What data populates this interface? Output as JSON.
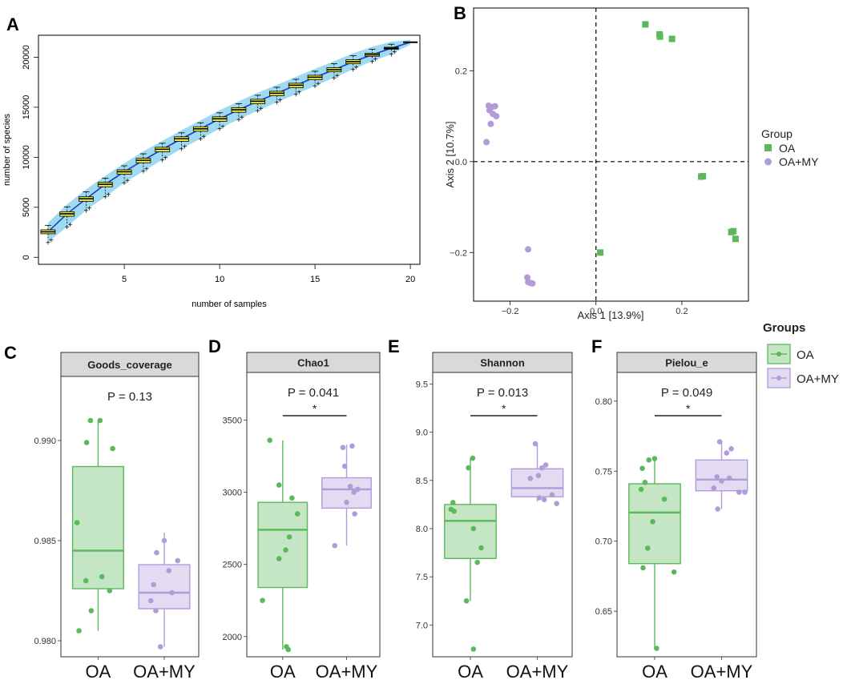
{
  "colors": {
    "oa": "#5cb85c",
    "oa_fill": "#c5e6c5",
    "oamy": "#b19cd9",
    "oamy_fill": "#e3dbf2",
    "band": "#8fd3f0",
    "box_yellow": "#f2ef3a",
    "curve": "#1a3fbf",
    "strip": "#d9d9d9"
  },
  "chart_data": [
    {
      "panel": "A",
      "type": "box",
      "title": "",
      "xlabel": "number of samples",
      "ylabel": "number of species",
      "xlim": [
        0.5,
        20.5
      ],
      "ylim": [
        -700,
        22200
      ],
      "xticks": [
        5,
        10,
        15,
        20
      ],
      "yticks": [
        0,
        5000,
        10000,
        15000,
        20000
      ],
      "x": [
        1,
        2,
        3,
        4,
        5,
        6,
        7,
        8,
        9,
        10,
        11,
        12,
        13,
        14,
        15,
        16,
        17,
        18,
        19,
        20
      ],
      "median": [
        2550,
        4350,
        5850,
        7300,
        8550,
        9700,
        10800,
        11850,
        12850,
        13850,
        14750,
        15600,
        16400,
        17200,
        18000,
        18750,
        19550,
        20250,
        20900,
        21500
      ],
      "q1": [
        2350,
        4100,
        5600,
        7050,
        8300,
        9450,
        10550,
        11600,
        12600,
        13600,
        14500,
        15350,
        16150,
        16950,
        17750,
        18550,
        19350,
        20100,
        20800,
        21500
      ],
      "q3": [
        2750,
        4550,
        6050,
        7500,
        8750,
        9900,
        11000,
        12050,
        13050,
        14050,
        14950,
        15800,
        16600,
        17400,
        18200,
        18950,
        19750,
        20400,
        21000,
        21500
      ],
      "low": [
        1750,
        3300,
        4950,
        6300,
        7700,
        8850,
        10000,
        11100,
        12100,
        13100,
        14050,
        14900,
        15750,
        16550,
        17400,
        18200,
        19050,
        19850,
        20550,
        21500
      ],
      "high": [
        3200,
        5050,
        6550,
        7900,
        9150,
        10350,
        11400,
        12450,
        13450,
        14450,
        15350,
        16200,
        17000,
        17800,
        18600,
        19350,
        20150,
        20800,
        21300,
        21500
      ]
    },
    {
      "panel": "B",
      "type": "scatter",
      "xlabel": "Axis 1 [13.9%]",
      "ylabel": "Axis 2 [10.7%]",
      "xlim": [
        -0.285,
        0.355
      ],
      "ylim": [
        -0.307,
        0.338
      ],
      "xticks": [
        -0.2,
        0.0,
        0.2
      ],
      "xtick_labels": [
        "−0.2",
        "0.0",
        "0.2"
      ],
      "yticks": [
        -0.2,
        0.0,
        0.2
      ],
      "ytick_labels": [
        "−0.2",
        "0.0",
        "0.2"
      ],
      "legend_title": "Group",
      "series": [
        {
          "name": "OA",
          "marker": "square",
          "points": [
            [
              0.115,
              0.302
            ],
            [
              0.148,
              0.28
            ],
            [
              0.149,
              0.275
            ],
            [
              0.177,
              0.27
            ],
            [
              0.245,
              -0.033
            ],
            [
              0.249,
              -0.032
            ],
            [
              0.315,
              -0.155
            ],
            [
              0.32,
              -0.153
            ],
            [
              0.325,
              -0.17
            ],
            [
              0.01,
              -0.2
            ]
          ]
        },
        {
          "name": "OA+MY",
          "marker": "circle",
          "points": [
            [
              -0.25,
              0.123
            ],
            [
              -0.243,
              0.12
            ],
            [
              -0.235,
              0.122
            ],
            [
              -0.248,
              0.113
            ],
            [
              -0.24,
              0.105
            ],
            [
              -0.232,
              0.1
            ],
            [
              -0.245,
              0.083
            ],
            [
              -0.255,
              0.043
            ],
            [
              -0.158,
              -0.193
            ],
            [
              -0.16,
              -0.255
            ],
            [
              -0.158,
              -0.265
            ],
            [
              -0.153,
              -0.267
            ],
            [
              -0.148,
              -0.268
            ]
          ]
        }
      ]
    },
    {
      "panel": "C",
      "type": "box",
      "strip_title": "Goods_coverage",
      "p_label": "P = 0.13",
      "significance": "",
      "categories": [
        "OA",
        "OA+MY"
      ],
      "ylim": [
        0.9792,
        0.9932
      ],
      "yticks": [
        0.98,
        0.985,
        0.99
      ],
      "ytick_labels": [
        "0.980",
        "0.985",
        "0.990"
      ],
      "boxes": [
        {
          "low": 0.9805,
          "q1": 0.9826,
          "median": 0.9845,
          "q3": 0.9887,
          "high": 0.991
        },
        {
          "low": 0.9797,
          "q1": 0.9816,
          "median": 0.9824,
          "q3": 0.9838,
          "high": 0.9854
        }
      ],
      "points": [
        [
          [
            -0.2,
            0.991
          ],
          [
            0.05,
            0.991
          ],
          [
            -0.3,
            0.9899
          ],
          [
            0.38,
            0.9896
          ],
          [
            -0.55,
            0.9859
          ],
          [
            -0.32,
            0.983
          ],
          [
            0.1,
            0.9832
          ],
          [
            0.3,
            0.9825
          ],
          [
            -0.18,
            0.9815
          ],
          [
            -0.5,
            0.9805
          ]
        ],
        [
          [
            0.0,
            0.985
          ],
          [
            -0.2,
            0.9844
          ],
          [
            0.35,
            0.984
          ],
          [
            0.12,
            0.9835
          ],
          [
            -0.28,
            0.9828
          ],
          [
            0.2,
            0.9824
          ],
          [
            -0.35,
            0.982
          ],
          [
            -0.22,
            0.9815
          ],
          [
            -0.1,
            0.9797
          ]
        ]
      ]
    },
    {
      "panel": "D",
      "type": "box",
      "strip_title": "Chao1",
      "p_label": "P = 0.041",
      "significance": "*",
      "categories": [
        "OA",
        "OA+MY"
      ],
      "ylim": [
        1860,
        3830
      ],
      "yticks": [
        2000,
        2500,
        3000,
        3500
      ],
      "ytick_labels": [
        "2000",
        "2500",
        "3000",
        "3500"
      ],
      "boxes": [
        {
          "low": 1910,
          "q1": 2340,
          "median": 2740,
          "q3": 2930,
          "high": 3360
        },
        {
          "low": 2630,
          "q1": 2890,
          "median": 3020,
          "q3": 3100,
          "high": 3330
        }
      ],
      "points": [
        [
          [
            -0.35,
            3360
          ],
          [
            -0.1,
            3050
          ],
          [
            0.25,
            2960
          ],
          [
            0.4,
            2850
          ],
          [
            0.18,
            2690
          ],
          [
            0.08,
            2600
          ],
          [
            -0.1,
            2540
          ],
          [
            -0.55,
            2250
          ],
          [
            0.1,
            1930
          ],
          [
            0.15,
            1910
          ]
        ],
        [
          [
            -0.1,
            3310
          ],
          [
            0.15,
            3320
          ],
          [
            -0.05,
            3180
          ],
          [
            0.1,
            3040
          ],
          [
            0.3,
            3020
          ],
          [
            0.2,
            3000
          ],
          [
            0.0,
            2930
          ],
          [
            0.22,
            2850
          ],
          [
            -0.32,
            2630
          ]
        ]
      ]
    },
    {
      "panel": "E",
      "type": "box",
      "strip_title": "Shannon",
      "p_label": "P = 0.013",
      "significance": "*",
      "categories": [
        "OA",
        "OA+MY"
      ],
      "ylim": [
        6.67,
        9.62
      ],
      "yticks": [
        7.0,
        7.5,
        8.0,
        8.5,
        9.0,
        9.5
      ],
      "ytick_labels": [
        "7.0",
        "7.5",
        "8.0",
        "8.5",
        "9.0",
        "9.5"
      ],
      "boxes": [
        {
          "low": 7.25,
          "q1": 7.69,
          "median": 8.08,
          "q3": 8.25,
          "high": 8.73
        },
        {
          "low": 8.28,
          "q1": 8.33,
          "median": 8.42,
          "q3": 8.62,
          "high": 8.88
        }
      ],
      "points": [
        [
          [
            0.06,
            8.73
          ],
          [
            -0.05,
            8.63
          ],
          [
            -0.45,
            8.27
          ],
          [
            -0.5,
            8.2
          ],
          [
            -0.42,
            8.18
          ],
          [
            0.08,
            8.0
          ],
          [
            0.28,
            7.8
          ],
          [
            0.18,
            7.65
          ],
          [
            -0.1,
            7.25
          ],
          [
            0.08,
            6.75
          ]
        ],
        [
          [
            -0.05,
            8.88
          ],
          [
            0.22,
            8.66
          ],
          [
            0.12,
            8.63
          ],
          [
            0.03,
            8.55
          ],
          [
            -0.18,
            8.52
          ],
          [
            0.38,
            8.35
          ],
          [
            0.05,
            8.32
          ],
          [
            0.18,
            8.3
          ],
          [
            0.5,
            8.26
          ]
        ]
      ]
    },
    {
      "panel": "F",
      "type": "box",
      "strip_title": "Pielou_e",
      "p_label": "P = 0.049",
      "significance": "*",
      "categories": [
        "OA",
        "OA+MY"
      ],
      "ylim": [
        0.6175,
        0.8205
      ],
      "yticks": [
        0.65,
        0.7,
        0.75,
        0.8
      ],
      "ytick_labels": [
        "0.65",
        "0.70",
        "0.75",
        "0.80"
      ],
      "boxes": [
        {
          "low": 0.6235,
          "q1": 0.684,
          "median": 0.7205,
          "q3": 0.741,
          "high": 0.758
        },
        {
          "low": 0.723,
          "q1": 0.736,
          "median": 0.744,
          "q3": 0.758,
          "high": 0.772
        }
      ],
      "points": [
        [
          [
            -0.15,
            0.758
          ],
          [
            0.0,
            0.759
          ],
          [
            -0.32,
            0.752
          ],
          [
            -0.25,
            0.742
          ],
          [
            -0.35,
            0.737
          ],
          [
            0.25,
            0.73
          ],
          [
            -0.05,
            0.714
          ],
          [
            -0.18,
            0.695
          ],
          [
            -0.3,
            0.681
          ],
          [
            0.5,
            0.678
          ],
          [
            0.05,
            0.6235
          ]
        ],
        [
          [
            -0.05,
            0.771
          ],
          [
            0.25,
            0.766
          ],
          [
            0.13,
            0.763
          ],
          [
            -0.12,
            0.746
          ],
          [
            0.0,
            0.743
          ],
          [
            0.2,
            0.745
          ],
          [
            0.45,
            0.735
          ],
          [
            -0.2,
            0.738
          ],
          [
            0.6,
            0.735
          ],
          [
            -0.1,
            0.723
          ]
        ]
      ]
    }
  ],
  "panel_labels": [
    "A",
    "B",
    "C",
    "D",
    "E",
    "F"
  ],
  "legend_groups": {
    "title": "Groups",
    "items": [
      "OA",
      "OA+MY"
    ]
  }
}
